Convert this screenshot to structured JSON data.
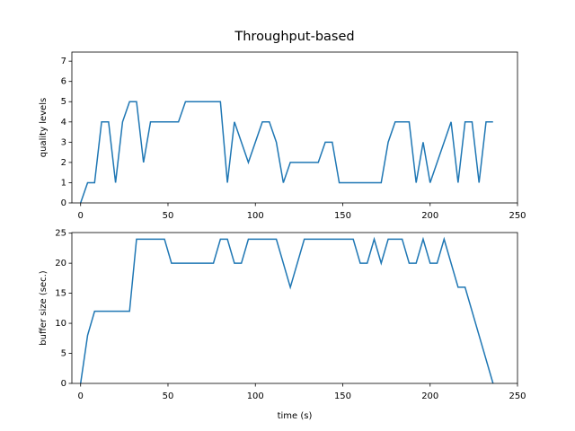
{
  "chart_data": [
    {
      "type": "line",
      "title": "Throughput-based",
      "ylabel": "quality levels",
      "color": "#1f77b4",
      "x": [
        0,
        4,
        8,
        12,
        16,
        20,
        24,
        28,
        32,
        36,
        40,
        56,
        60,
        80,
        84,
        88,
        96,
        104,
        108,
        112,
        116,
        120,
        136,
        140,
        144,
        148,
        172,
        176,
        180,
        188,
        192,
        196,
        200,
        212,
        216,
        220,
        224,
        228,
        232,
        236
      ],
      "values": [
        0,
        1,
        1,
        4,
        4,
        1,
        4,
        5,
        5,
        2,
        4,
        4,
        5,
        5,
        1,
        4,
        2,
        4,
        4,
        3,
        1,
        2,
        2,
        3,
        3,
        1,
        1,
        3,
        4,
        4,
        1,
        3,
        1,
        4,
        1,
        4,
        4,
        1,
        4,
        4
      ],
      "xlim": [
        -5,
        250
      ],
      "xticks": [
        0,
        50,
        100,
        150,
        200,
        250
      ],
      "ylim": [
        0,
        7.45
      ],
      "yticks": [
        0,
        1,
        2,
        3,
        4,
        5,
        6,
        7
      ]
    },
    {
      "type": "line",
      "ylabel": "buffer size (sec.)",
      "xlabel": "time (s)",
      "color": "#1f77b4",
      "x": [
        0,
        4,
        8,
        28,
        32,
        48,
        52,
        76,
        80,
        84,
        88,
        92,
        96,
        112,
        120,
        128,
        156,
        160,
        164,
        168,
        172,
        176,
        184,
        188,
        192,
        196,
        200,
        204,
        208,
        216,
        220,
        236
      ],
      "values": [
        0,
        8,
        12,
        12,
        24,
        24,
        20,
        20,
        24,
        24,
        20,
        20,
        24,
        24,
        16,
        24,
        24,
        20,
        20,
        24,
        20,
        24,
        24,
        20,
        20,
        24,
        20,
        20,
        24,
        16,
        16,
        0
      ],
      "xlim": [
        -5,
        250
      ],
      "xticks": [
        0,
        50,
        100,
        150,
        200,
        250
      ],
      "ylim": [
        0,
        25.1
      ],
      "yticks": [
        0,
        5,
        10,
        15,
        20,
        25
      ]
    }
  ]
}
